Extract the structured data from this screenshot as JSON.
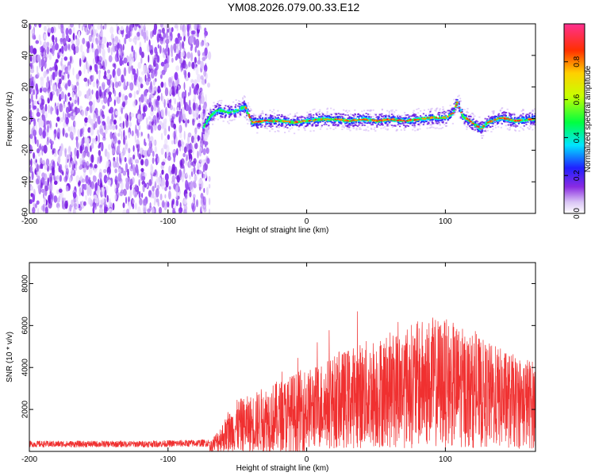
{
  "title": "YM08.2026.079.00.33.E12",
  "chart_data": [
    {
      "type": "heatmap",
      "xlabel": "Height of straight line (km)",
      "ylabel": "Frequency (Hz)",
      "xlim": [
        -200,
        165
      ],
      "ylim": [
        -60,
        60
      ],
      "xticks": [
        "-200",
        "-100",
        "0",
        "100"
      ],
      "yticks": [
        "-60",
        "-40",
        "-20",
        "0",
        "20",
        "40",
        "60"
      ],
      "noise_region_x": [
        -200,
        -70
      ],
      "ridge": {
        "x": [
          -75,
          -70,
          -65,
          -60,
          -55,
          -50,
          -45,
          -40,
          -30,
          -20,
          -10,
          0,
          10,
          20,
          30,
          40,
          50,
          60,
          70,
          80,
          90,
          100,
          105,
          108,
          112,
          120,
          125,
          130,
          140,
          150,
          160,
          165
        ],
        "y": [
          -5,
          2,
          6,
          5,
          4,
          6,
          8,
          -2,
          -1,
          -1,
          -2,
          -1,
          0,
          0,
          -1,
          0,
          -1,
          0,
          -1,
          0,
          1,
          1,
          4,
          11,
          2,
          -3,
          -6,
          -2,
          1,
          -1,
          0,
          0
        ]
      },
      "colorbar": {
        "label": "Normalized spectral amplitude",
        "ticks": [
          "0.0",
          "0.2",
          "0.4",
          "0.6",
          "0.8"
        ],
        "range": [
          0,
          1
        ]
      }
    },
    {
      "type": "line",
      "xlabel": "Height of straight line (km)",
      "ylabel": "SNR (10 * v/v)",
      "xlim": [
        -200,
        165
      ],
      "ylim": [
        0,
        9000
      ],
      "xticks": [
        "-200",
        "-100",
        "0",
        "100"
      ],
      "yticks": [
        "2000",
        "4000",
        "6000",
        "8000"
      ],
      "color": "#f03030",
      "envelope": {
        "x": [
          -200,
          -120,
          -70,
          -60,
          -50,
          -40,
          -30,
          -20,
          -10,
          0,
          10,
          20,
          30,
          40,
          50,
          60,
          70,
          80,
          90,
          100,
          110,
          120,
          130,
          140,
          150,
          160,
          165
        ],
        "y": [
          350,
          350,
          400,
          1300,
          2200,
          2400,
          2800,
          3000,
          3300,
          3600,
          4000,
          4300,
          4600,
          4900,
          5100,
          5300,
          5600,
          5800,
          6000,
          5900,
          5600,
          5200,
          4900,
          4600,
          4300,
          4200,
          4000
        ]
      }
    }
  ]
}
